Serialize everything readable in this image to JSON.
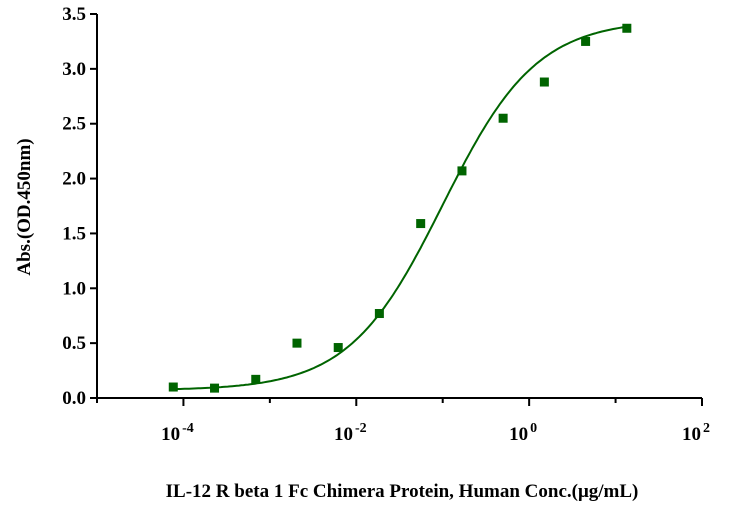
{
  "chart_data": {
    "type": "scatter",
    "xlabel": "IL-12 R beta 1 Fc Chimera Protein, Human  Conc.(μg/mL)",
    "ylabel": "Abs.(OD.450nm)",
    "x_scale": "log10",
    "xlim": [
      1e-05,
      100
    ],
    "ylim": [
      0,
      3.5
    ],
    "x_ticks": [
      {
        "base": "10",
        "exp": "-4",
        "value": 0.0001
      },
      {
        "base": "10",
        "exp": "-2",
        "value": 0.01
      },
      {
        "base": "10",
        "exp": "0",
        "value": 1
      },
      {
        "base": "10",
        "exp": "2",
        "value": 100
      }
    ],
    "y_ticks": [
      "0.0",
      "0.5",
      "1.0",
      "1.5",
      "2.0",
      "2.5",
      "3.0",
      "3.5"
    ],
    "grid": false,
    "colors": {
      "series": "#006400",
      "axis": "#000000"
    },
    "series": [
      {
        "points": [
          {
            "x": 7.63e-05,
            "y": 0.1
          },
          {
            "x": 0.000229,
            "y": 0.09
          },
          {
            "x": 0.000687,
            "y": 0.17
          },
          {
            "x": 0.00206,
            "y": 0.5
          },
          {
            "x": 0.00618,
            "y": 0.46
          },
          {
            "x": 0.0185,
            "y": 0.77
          },
          {
            "x": 0.0556,
            "y": 1.59
          },
          {
            "x": 0.167,
            "y": 2.07
          },
          {
            "x": 0.5,
            "y": 2.55
          },
          {
            "x": 1.5,
            "y": 2.88
          },
          {
            "x": 4.5,
            "y": 3.25
          },
          {
            "x": 13.5,
            "y": 3.37
          }
        ],
        "fit": {
          "model": "4PL",
          "bottom": 0.07,
          "top": 3.45,
          "ec50": 0.1,
          "hill": 0.8
        }
      }
    ]
  }
}
